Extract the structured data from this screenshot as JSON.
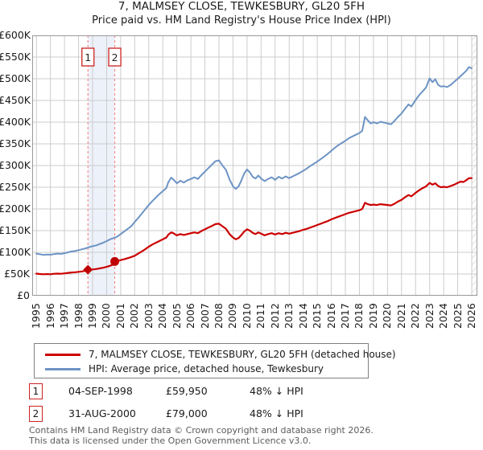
{
  "chart_data": {
    "type": "line",
    "title": "7, MALMSEY CLOSE, TEWKESBURY, GL20 5FH",
    "subtitle": "Price paid vs. HM Land Registry's House Price Index (HPI)",
    "grid": true,
    "legend_position": "bottom",
    "x_axis": {
      "range": [
        1994.7,
        2026.4
      ],
      "ticks": [
        1995,
        1996,
        1997,
        1998,
        1999,
        2000,
        2001,
        2002,
        2003,
        2004,
        2005,
        2006,
        2007,
        2008,
        2009,
        2010,
        2011,
        2012,
        2013,
        2014,
        2015,
        2016,
        2017,
        2018,
        2019,
        2020,
        2021,
        2022,
        2023,
        2024,
        2025,
        2026
      ]
    },
    "y_axis": {
      "range": [
        0,
        600000
      ],
      "ticks": [
        [
          0,
          "£0"
        ],
        [
          50000,
          "£50K"
        ],
        [
          100000,
          "£100K"
        ],
        [
          150000,
          "£150K"
        ],
        [
          200000,
          "£200K"
        ],
        [
          250000,
          "£250K"
        ],
        [
          300000,
          "£300K"
        ],
        [
          350000,
          "£350K"
        ],
        [
          400000,
          "£400K"
        ],
        [
          450000,
          "£450K"
        ],
        [
          500000,
          "£500K"
        ],
        [
          550000,
          "£550K"
        ],
        [
          600000,
          "£600K"
        ]
      ]
    },
    "highlight_band": {
      "from": 1998.67,
      "to": 2000.58,
      "color": "#edf1fa"
    },
    "future_hatch": {
      "from": 2026.0,
      "to": 2026.4
    },
    "sale_markers": [
      {
        "label": "1",
        "x": 1998.67,
        "value": 59950,
        "shape": "diamond"
      },
      {
        "label": "2",
        "x": 2000.58,
        "value": 79000,
        "shape": "circle"
      }
    ],
    "series": [
      {
        "name": "HPI: Average price, detached house, Tewkesbury",
        "color": "#6d94c5",
        "width": 2,
        "points": [
          [
            1995,
            97000
          ],
          [
            1995.25,
            95500
          ],
          [
            1995.5,
            94000
          ],
          [
            1995.75,
            95000
          ],
          [
            1996,
            94500
          ],
          [
            1996.25,
            96000
          ],
          [
            1996.5,
            97000
          ],
          [
            1996.75,
            96500
          ],
          [
            1997,
            98000
          ],
          [
            1997.25,
            100000
          ],
          [
            1997.5,
            102000
          ],
          [
            1997.75,
            103000
          ],
          [
            1998,
            105000
          ],
          [
            1998.25,
            107000
          ],
          [
            1998.5,
            109000
          ],
          [
            1998.75,
            112000
          ],
          [
            1999,
            114000
          ],
          [
            1999.25,
            116000
          ],
          [
            1999.5,
            119000
          ],
          [
            1999.75,
            122000
          ],
          [
            2000,
            126000
          ],
          [
            2000.25,
            130000
          ],
          [
            2000.5,
            133000
          ],
          [
            2000.75,
            136000
          ],
          [
            2001,
            142000
          ],
          [
            2001.25,
            148000
          ],
          [
            2001.5,
            154000
          ],
          [
            2001.75,
            160000
          ],
          [
            2002,
            170000
          ],
          [
            2002.25,
            179000
          ],
          [
            2002.5,
            189000
          ],
          [
            2002.75,
            199000
          ],
          [
            2003,
            209000
          ],
          [
            2003.25,
            218000
          ],
          [
            2003.5,
            226000
          ],
          [
            2003.75,
            234000
          ],
          [
            2004,
            241000
          ],
          [
            2004.25,
            248000
          ],
          [
            2004.4,
            262000
          ],
          [
            2004.6,
            272000
          ],
          [
            2004.75,
            268000
          ],
          [
            2005,
            259000
          ],
          [
            2005.25,
            265000
          ],
          [
            2005.5,
            261000
          ],
          [
            2005.75,
            266000
          ],
          [
            2006,
            269000
          ],
          [
            2006.25,
            273000
          ],
          [
            2006.5,
            269000
          ],
          [
            2006.75,
            278000
          ],
          [
            2007,
            286000
          ],
          [
            2007.25,
            294000
          ],
          [
            2007.5,
            302000
          ],
          [
            2007.75,
            310000
          ],
          [
            2008,
            312000
          ],
          [
            2008.25,
            300000
          ],
          [
            2008.5,
            290000
          ],
          [
            2008.75,
            268000
          ],
          [
            2009,
            252000
          ],
          [
            2009.2,
            246000
          ],
          [
            2009.4,
            252000
          ],
          [
            2009.6,
            266000
          ],
          [
            2009.8,
            282000
          ],
          [
            2010,
            291000
          ],
          [
            2010.2,
            284000
          ],
          [
            2010.4,
            274000
          ],
          [
            2010.6,
            270000
          ],
          [
            2010.8,
            277000
          ],
          [
            2011,
            270000
          ],
          [
            2011.25,
            264000
          ],
          [
            2011.5,
            269000
          ],
          [
            2011.75,
            273000
          ],
          [
            2012,
            267000
          ],
          [
            2012.25,
            274000
          ],
          [
            2012.5,
            270000
          ],
          [
            2012.75,
            275000
          ],
          [
            2013,
            271000
          ],
          [
            2013.25,
            275000
          ],
          [
            2013.5,
            279000
          ],
          [
            2013.75,
            283000
          ],
          [
            2014,
            288000
          ],
          [
            2014.25,
            293000
          ],
          [
            2014.5,
            299000
          ],
          [
            2014.75,
            304000
          ],
          [
            2015,
            309000
          ],
          [
            2015.25,
            315000
          ],
          [
            2015.5,
            321000
          ],
          [
            2015.75,
            327000
          ],
          [
            2016,
            334000
          ],
          [
            2016.25,
            341000
          ],
          [
            2016.5,
            347000
          ],
          [
            2016.75,
            352000
          ],
          [
            2017,
            357000
          ],
          [
            2017.25,
            363000
          ],
          [
            2017.5,
            367000
          ],
          [
            2017.75,
            371000
          ],
          [
            2018,
            375000
          ],
          [
            2018.2,
            380000
          ],
          [
            2018.4,
            412000
          ],
          [
            2018.6,
            404000
          ],
          [
            2018.8,
            397000
          ],
          [
            2019,
            400000
          ],
          [
            2019.25,
            397000
          ],
          [
            2019.5,
            401000
          ],
          [
            2019.75,
            399000
          ],
          [
            2020,
            397000
          ],
          [
            2020.25,
            395000
          ],
          [
            2020.5,
            403000
          ],
          [
            2020.75,
            412000
          ],
          [
            2021,
            420000
          ],
          [
            2021.25,
            431000
          ],
          [
            2021.5,
            441000
          ],
          [
            2021.7,
            436000
          ],
          [
            2022,
            451000
          ],
          [
            2022.25,
            462000
          ],
          [
            2022.5,
            471000
          ],
          [
            2022.75,
            480000
          ],
          [
            2023,
            501000
          ],
          [
            2023.2,
            492000
          ],
          [
            2023.4,
            499000
          ],
          [
            2023.6,
            486000
          ],
          [
            2023.8,
            482000
          ],
          [
            2024,
            483000
          ],
          [
            2024.25,
            481000
          ],
          [
            2024.5,
            486000
          ],
          [
            2024.75,
            493000
          ],
          [
            2025,
            500000
          ],
          [
            2025.2,
            506000
          ],
          [
            2025.4,
            512000
          ],
          [
            2025.6,
            518000
          ],
          [
            2025.8,
            527000
          ],
          [
            2026,
            524000
          ]
        ]
      },
      {
        "name": "7, MALMSEY CLOSE, TEWKESBURY, GL20 5FH (detached house)",
        "color": "#cc0000",
        "width": 2.2,
        "points": [
          [
            1995,
            51000
          ],
          [
            1995.25,
            50000
          ],
          [
            1995.5,
            49500
          ],
          [
            1995.75,
            50000
          ],
          [
            1996,
            49500
          ],
          [
            1996.25,
            50500
          ],
          [
            1996.5,
            51000
          ],
          [
            1996.75,
            50500
          ],
          [
            1997,
            51500
          ],
          [
            1997.25,
            52500
          ],
          [
            1997.5,
            53500
          ],
          [
            1997.75,
            54000
          ],
          [
            1998,
            55000
          ],
          [
            1998.25,
            56000
          ],
          [
            1998.5,
            57500
          ],
          [
            1998.67,
            59950
          ],
          [
            1999,
            60500
          ],
          [
            1999.25,
            61500
          ],
          [
            1999.5,
            63000
          ],
          [
            1999.75,
            64500
          ],
          [
            2000,
            66500
          ],
          [
            2000.25,
            69000
          ],
          [
            2000.45,
            71500
          ],
          [
            2000.58,
            79000
          ],
          [
            2000.75,
            80000
          ],
          [
            2001,
            82000
          ],
          [
            2001.25,
            84000
          ],
          [
            2001.5,
            86500
          ],
          [
            2001.75,
            89000
          ],
          [
            2002,
            92000
          ],
          [
            2002.25,
            97000
          ],
          [
            2002.5,
            102000
          ],
          [
            2002.75,
            107000
          ],
          [
            2003,
            113000
          ],
          [
            2003.25,
            118000
          ],
          [
            2003.5,
            122000
          ],
          [
            2003.75,
            126000
          ],
          [
            2004,
            130000
          ],
          [
            2004.25,
            134000
          ],
          [
            2004.4,
            141000
          ],
          [
            2004.6,
            146000
          ],
          [
            2004.75,
            144000
          ],
          [
            2005,
            139000
          ],
          [
            2005.25,
            142000
          ],
          [
            2005.5,
            140000
          ],
          [
            2005.75,
            142000
          ],
          [
            2006,
            144000
          ],
          [
            2006.25,
            146000
          ],
          [
            2006.5,
            144000
          ],
          [
            2006.75,
            149000
          ],
          [
            2007,
            153000
          ],
          [
            2007.25,
            157000
          ],
          [
            2007.5,
            161000
          ],
          [
            2007.75,
            165000
          ],
          [
            2008,
            166000
          ],
          [
            2008.25,
            160000
          ],
          [
            2008.5,
            154000
          ],
          [
            2008.75,
            142000
          ],
          [
            2009,
            134000
          ],
          [
            2009.2,
            130000
          ],
          [
            2009.4,
            133000
          ],
          [
            2009.6,
            140000
          ],
          [
            2009.8,
            148000
          ],
          [
            2010,
            153000
          ],
          [
            2010.2,
            150000
          ],
          [
            2010.4,
            145000
          ],
          [
            2010.6,
            142000
          ],
          [
            2010.8,
            146000
          ],
          [
            2011,
            143000
          ],
          [
            2011.25,
            139000
          ],
          [
            2011.5,
            142000
          ],
          [
            2011.75,
            144000
          ],
          [
            2012,
            141000
          ],
          [
            2012.25,
            144000
          ],
          [
            2012.5,
            142000
          ],
          [
            2012.75,
            145000
          ],
          [
            2013,
            143000
          ],
          [
            2013.25,
            145000
          ],
          [
            2013.5,
            147000
          ],
          [
            2013.75,
            149000
          ],
          [
            2014,
            152000
          ],
          [
            2014.25,
            154000
          ],
          [
            2014.5,
            157000
          ],
          [
            2014.75,
            160000
          ],
          [
            2015,
            163000
          ],
          [
            2015.25,
            166000
          ],
          [
            2015.5,
            169000
          ],
          [
            2015.75,
            172000
          ],
          [
            2016,
            176000
          ],
          [
            2016.25,
            179000
          ],
          [
            2016.5,
            182000
          ],
          [
            2016.75,
            185000
          ],
          [
            2017,
            188000
          ],
          [
            2017.25,
            191000
          ],
          [
            2017.5,
            193000
          ],
          [
            2017.75,
            195000
          ],
          [
            2018,
            197000
          ],
          [
            2018.2,
            200000
          ],
          [
            2018.4,
            214000
          ],
          [
            2018.6,
            211000
          ],
          [
            2018.8,
            209000
          ],
          [
            2019,
            210000
          ],
          [
            2019.25,
            209000
          ],
          [
            2019.5,
            211000
          ],
          [
            2019.75,
            210000
          ],
          [
            2020,
            209000
          ],
          [
            2020.25,
            208000
          ],
          [
            2020.5,
            212000
          ],
          [
            2020.75,
            217000
          ],
          [
            2021,
            221000
          ],
          [
            2021.25,
            227000
          ],
          [
            2021.5,
            232000
          ],
          [
            2021.7,
            229000
          ],
          [
            2022,
            237000
          ],
          [
            2022.25,
            243000
          ],
          [
            2022.5,
            248000
          ],
          [
            2022.75,
            252000
          ],
          [
            2023,
            260000
          ],
          [
            2023.2,
            256000
          ],
          [
            2023.4,
            259000
          ],
          [
            2023.6,
            253000
          ],
          [
            2023.8,
            250000
          ],
          [
            2024,
            251000
          ],
          [
            2024.25,
            250000
          ],
          [
            2024.5,
            253000
          ],
          [
            2024.75,
            256000
          ],
          [
            2025,
            260000
          ],
          [
            2025.2,
            263000
          ],
          [
            2025.4,
            262000
          ],
          [
            2025.6,
            266000
          ],
          [
            2025.8,
            271000
          ],
          [
            2026,
            271000
          ]
        ]
      }
    ]
  },
  "legend_order": [
    1,
    0
  ],
  "transactions": [
    {
      "num": "1",
      "date": "04-SEP-1998",
      "price_display": "£59,950",
      "vs_hpi": "48% ↓ HPI"
    },
    {
      "num": "2",
      "date": "31-AUG-2000",
      "price_display": "£79,000",
      "vs_hpi": "48% ↓ HPI"
    }
  ],
  "footer": {
    "line1": "Contains HM Land Registry data © Crown copyright and database right 2026.",
    "line2": "This data is licensed under the Open Government Licence v3.0."
  },
  "style_colors": {
    "gridline": "#cccccc",
    "plot_border": "#999999",
    "dashed_sale_line": "#f98b8b",
    "highlight_band": "#edf1fa",
    "hatch_line": "#cfcfcf",
    "sale_box_border": "#cc2222"
  }
}
